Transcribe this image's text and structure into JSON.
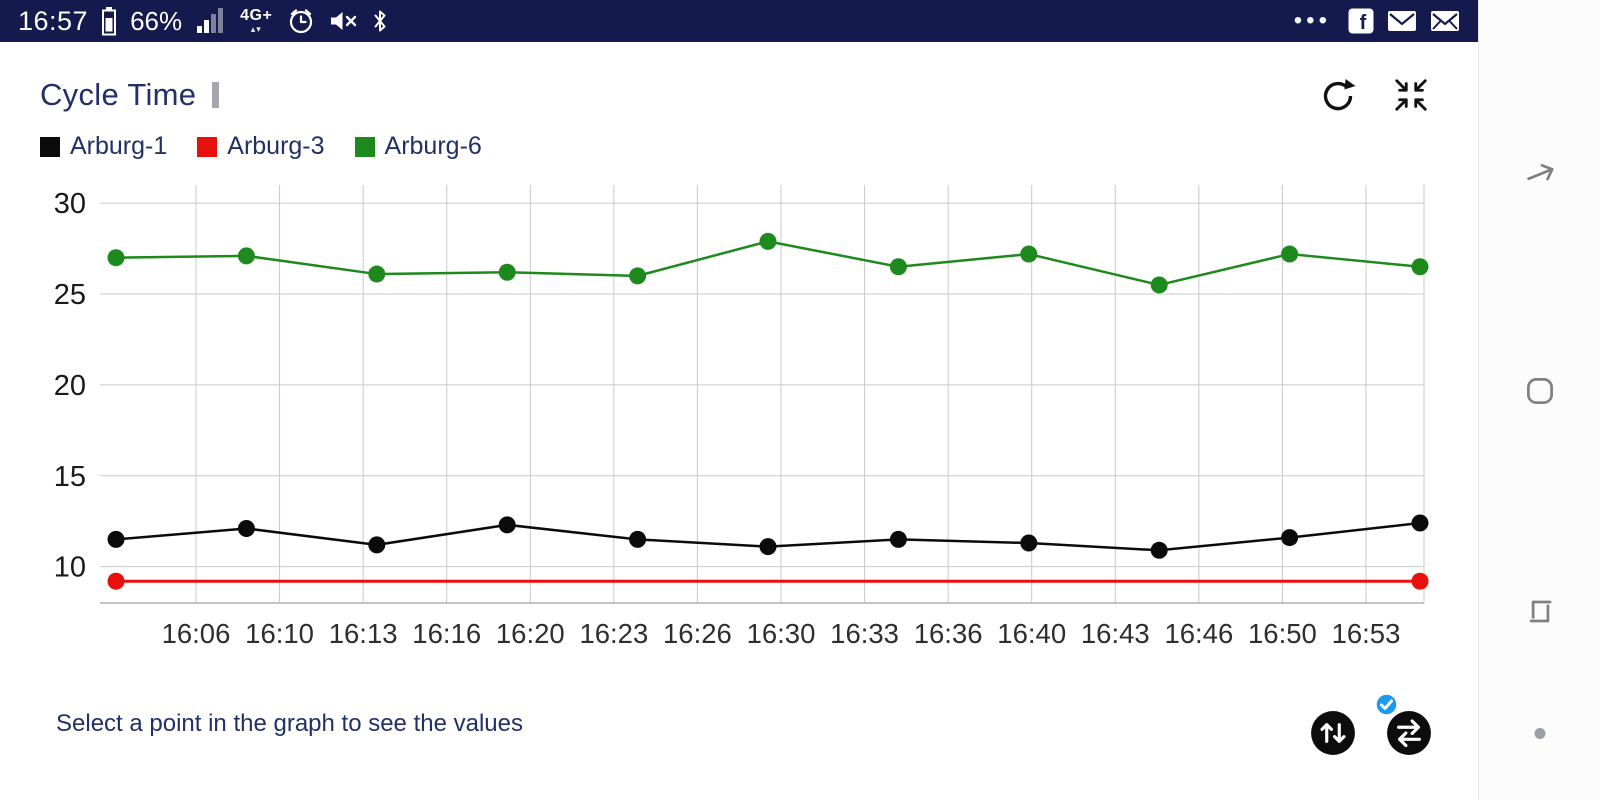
{
  "status_bar": {
    "time": "16:57",
    "battery_percent": "66%",
    "network_label": "4G+",
    "data_arrows": "▴▾",
    "overflow": "•••"
  },
  "header": {
    "title": "Cycle Time"
  },
  "legend": [
    {
      "label": "Arburg-1",
      "color": "#0b0b0b"
    },
    {
      "label": "Arburg-3",
      "color": "#e8100c"
    },
    {
      "label": "Arburg-6",
      "color": "#1e8a1e"
    }
  ],
  "chart_data": {
    "type": "line",
    "title": "Cycle Time",
    "xlabel": "",
    "ylabel": "",
    "x_tick_labels": [
      "16:06",
      "16:10",
      "16:13",
      "16:16",
      "16:20",
      "16:23",
      "16:26",
      "16:30",
      "16:33",
      "16:36",
      "16:40",
      "16:43",
      "16:46",
      "16:50",
      "16:53"
    ],
    "y_ticks": [
      10,
      15,
      20,
      25,
      30
    ],
    "ylim": [
      8,
      31
    ],
    "grid": true,
    "legend_position": "top-left",
    "series": [
      {
        "name": "Arburg-1",
        "color": "#0b0b0b",
        "values": [
          11.5,
          12.1,
          11.2,
          12.3,
          11.5,
          11.1,
          11.5,
          11.3,
          10.9,
          11.6,
          12.4
        ]
      },
      {
        "name": "Arburg-3",
        "color": "#e8100c",
        "values": [
          9.2,
          9.2
        ]
      },
      {
        "name": "Arburg-6",
        "color": "#1e8a1e",
        "values": [
          27.0,
          27.1,
          26.1,
          26.2,
          26.0,
          27.9,
          26.5,
          27.2,
          25.5,
          27.2,
          26.5
        ]
      }
    ]
  },
  "footer": {
    "hint": "Select a point in the graph to see the values"
  },
  "colors": {
    "statusbar_bg": "#141a4e",
    "accent_blue": "#223067",
    "badge_blue": "#1a9bef",
    "gridline": "#c9c9c9",
    "axis_line": "#b0b0b0",
    "nav_icon": "#808080"
  }
}
